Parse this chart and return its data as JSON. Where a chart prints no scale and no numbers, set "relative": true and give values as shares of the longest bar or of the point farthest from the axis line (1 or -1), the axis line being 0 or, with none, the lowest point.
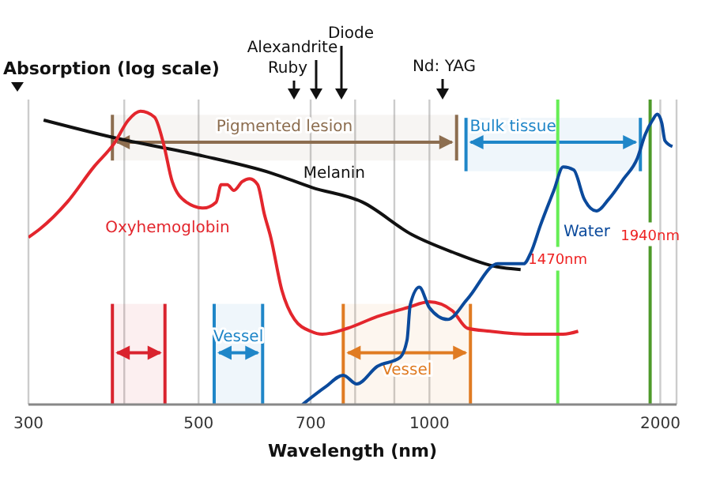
{
  "chart_data": {
    "type": "line",
    "ylabel": "Absorption (log scale)",
    "xlabel": "Wavelength (nm)",
    "relative": true,
    "log": "x",
    "xlim": [
      300,
      2100
    ],
    "xticks": [
      300,
      {
        "value": 400,
        "label": null
      },
      500,
      700,
      {
        "value": 800,
        "label": null
      },
      {
        "value": 900,
        "label": null
      },
      1000,
      2000
    ],
    "grid": "x",
    "series": [
      {
        "name": "Melanin",
        "color": "#111111",
        "x": [
          314,
          388,
          502,
          621,
          703,
          818,
          948,
          1071,
          1222,
          1315
        ],
        "values": [
          0.97,
          0.91,
          0.85,
          0.79,
          0.74,
          0.69,
          0.58,
          0.52,
          0.47,
          0.46
        ]
      },
      {
        "name": "Oxyhemoglobin",
        "color": "#e3262d",
        "x": [
          300,
          311,
          337,
          365,
          388,
          405,
          420,
          438,
          450,
          462,
          482,
          507,
          527,
          535,
          545,
          556,
          570,
          583,
          597,
          609,
          621,
          642,
          667,
          700,
          725,
          782,
          855,
          935,
          1000,
          1071,
          1121,
          1200,
          1345,
          1494,
          1563
        ],
        "values": [
          0.57,
          0.6,
          0.69,
          0.81,
          0.89,
          0.97,
          1.0,
          0.98,
          0.89,
          0.76,
          0.69,
          0.67,
          0.69,
          0.75,
          0.75,
          0.73,
          0.76,
          0.77,
          0.75,
          0.65,
          0.57,
          0.39,
          0.29,
          0.25,
          0.24,
          0.26,
          0.3,
          0.33,
          0.35,
          0.32,
          0.26,
          0.25,
          0.24,
          0.24,
          0.25
        ]
      },
      {
        "name": "Water",
        "color": "#0b4a9c",
        "x": [
          683,
          732,
          772,
          804,
          855,
          915,
          935,
          944,
          970,
          1000,
          1056,
          1121,
          1228,
          1327,
          1357,
          1395,
          1453,
          1494,
          1542,
          1592,
          1651,
          1713,
          1792,
          1867,
          1911,
          1954,
          1982,
          2009,
          2028,
          2074
        ],
        "values": [
          0,
          0.06,
          0.1,
          0.07,
          0.13,
          0.16,
          0.22,
          0.34,
          0.4,
          0.33,
          0.29,
          0.36,
          0.48,
          0.48,
          0.52,
          0.61,
          0.73,
          0.81,
          0.8,
          0.7,
          0.66,
          0.7,
          0.77,
          0.84,
          0.92,
          0.97,
          0.99,
          0.96,
          0.9,
          0.88
        ]
      }
    ],
    "bands": [
      {
        "axis": "x",
        "from": 386,
        "to": 1085,
        "label": "Pigmented lesion",
        "color": "#8c6d4f"
      },
      {
        "axis": "x",
        "from": 1116,
        "to": 1884,
        "label": "Bulk tissue",
        "color": "#1f86c8"
      },
      {
        "axis": "x",
        "from": 386,
        "to": 452,
        "color": "#d9232e"
      },
      {
        "axis": "x",
        "from": 524,
        "to": 606,
        "label": "Vessel",
        "color": "#1f86c8"
      },
      {
        "axis": "x",
        "from": 772,
        "to": 1131,
        "label": "Vessel",
        "color": "#e07b22"
      }
    ],
    "ref_lines": [
      {
        "axis": "x",
        "value": 1470,
        "label": "1470nm",
        "color": "#66ee55"
      },
      {
        "axis": "x",
        "value": 1940,
        "label": "1940nm",
        "color": "#4e9a2a"
      }
    ],
    "annotations": [
      "Ruby",
      "Alexandrite",
      "Diode",
      "Nd: YAG"
    ]
  }
}
